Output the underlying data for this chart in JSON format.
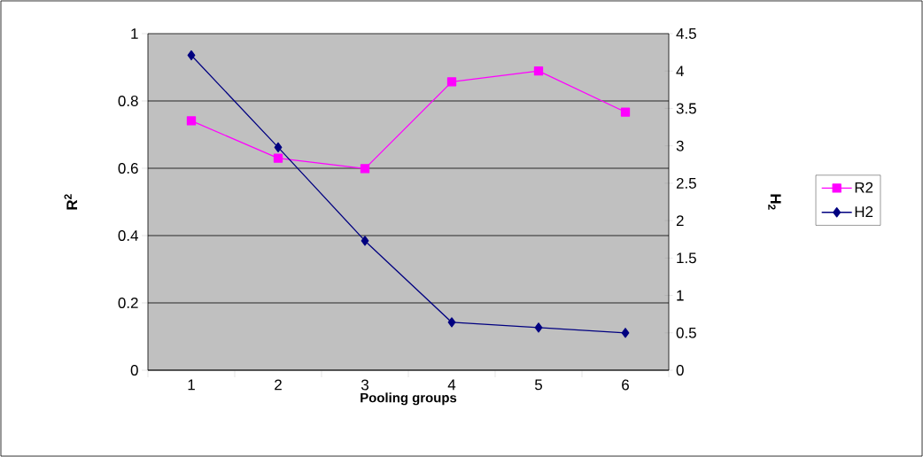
{
  "chart_data": {
    "type": "line",
    "xlabel": "Pooling groups",
    "ylabel": "R$^{2}$",
    "y2label": "H$_{2}$",
    "categories": [
      "1",
      "2",
      "3",
      "4",
      "5",
      "6"
    ],
    "series": [
      {
        "name": "R2",
        "color": "#ff00ff",
        "marker": "square",
        "values": [
          0.741,
          0.63,
          0.599,
          0.857,
          0.889,
          0.767
        ]
      },
      {
        "name": "H2",
        "color": "#000080",
        "marker": "diamond",
        "axis": "y2",
        "values": [
          4.21,
          2.98,
          1.73,
          0.64,
          0.57,
          0.5
        ]
      }
    ],
    "ylim": [
      0,
      1
    ],
    "yticks": [
      0,
      0.2,
      0.4,
      0.6,
      0.8,
      1
    ],
    "y2lim": [
      0,
      4.5
    ],
    "y2ticks": [
      0,
      0.5,
      1,
      1.5,
      2,
      2.5,
      3,
      3.5,
      4,
      4.5
    ],
    "grid": "y",
    "legend": "right"
  }
}
